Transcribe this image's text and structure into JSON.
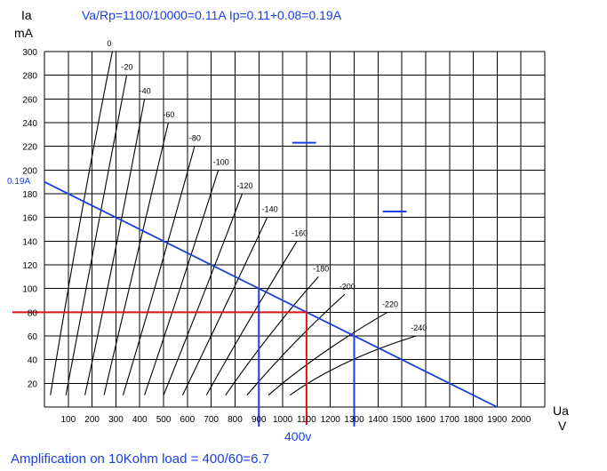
{
  "chart_data": {
    "type": "line",
    "title": "Va/Rp=1100/10000=0.11A  Ip=0.11+0.08=0.19A",
    "ylabel_line1": "Ia",
    "ylabel_line2": "mA",
    "xlabel_line1": "Ua",
    "xlabel_line2": "V",
    "caption": "Amplification on 10Kohm load = 400/60=6.7",
    "annotation_400v": "400v",
    "annotation_019A": "0.19A",
    "xlim": [
      0,
      2100
    ],
    "ylim": [
      0,
      300
    ],
    "x_ticks": [
      "100",
      "200",
      "300",
      "400",
      "500",
      "600",
      "700",
      "800",
      "900",
      "1000",
      "1100",
      "1200",
      "1300",
      "1400",
      "1500",
      "1600",
      "1700",
      "1800",
      "1900",
      "2000"
    ],
    "y_ticks": [
      "20",
      "40",
      "60",
      "80",
      "100",
      "120",
      "140",
      "160",
      "180",
      "200",
      "220",
      "240",
      "260",
      "280",
      "300"
    ],
    "grid": true,
    "grid_color": "#000000",
    "curve_color": "#000000",
    "load_line_color": "#1a3fe0",
    "marker_red_color": "#e0101a",
    "series": [
      {
        "name": "0",
        "points": [
          [
            25,
            10
          ],
          [
            155,
            170
          ],
          [
            285,
            300
          ]
        ]
      },
      {
        "name": "-20",
        "points": [
          [
            90,
            10
          ],
          [
            215,
            140
          ],
          [
            345,
            280
          ]
        ]
      },
      {
        "name": "-40",
        "points": [
          [
            170,
            10
          ],
          [
            300,
            130
          ],
          [
            420,
            260
          ]
        ]
      },
      {
        "name": "-60",
        "points": [
          [
            250,
            10
          ],
          [
            380,
            120
          ],
          [
            520,
            240
          ]
        ]
      },
      {
        "name": "-80",
        "points": [
          [
            330,
            10
          ],
          [
            480,
            110
          ],
          [
            630,
            220
          ]
        ]
      },
      {
        "name": "-100",
        "points": [
          [
            420,
            10
          ],
          [
            580,
            105
          ],
          [
            730,
            200
          ]
        ]
      },
      {
        "name": "-120",
        "points": [
          [
            500,
            10
          ],
          [
            670,
            95
          ],
          [
            830,
            180
          ]
        ]
      },
      {
        "name": "-140",
        "points": [
          [
            580,
            10
          ],
          [
            760,
            85
          ],
          [
            935,
            160
          ]
        ]
      },
      {
        "name": "-160",
        "points": [
          [
            680,
            10
          ],
          [
            860,
            75
          ],
          [
            1060,
            140
          ]
        ]
      },
      {
        "name": "-180",
        "points": [
          [
            760,
            10
          ],
          [
            950,
            65
          ],
          [
            1150,
            110
          ]
        ]
      },
      {
        "name": "-200",
        "points": [
          [
            850,
            10
          ],
          [
            1040,
            55
          ],
          [
            1260,
            95
          ]
        ]
      },
      {
        "name": "-220",
        "points": [
          [
            940,
            10
          ],
          [
            1140,
            45
          ],
          [
            1440,
            80
          ]
        ]
      },
      {
        "name": "-240",
        "points": [
          [
            1030,
            10
          ],
          [
            1240,
            40
          ],
          [
            1560,
            60
          ]
        ]
      }
    ],
    "load_line": {
      "x": [
        0,
        1900
      ],
      "y": [
        190,
        0
      ]
    },
    "blue_markers": [
      {
        "x": 900,
        "y_top": 100
      },
      {
        "x": 1300,
        "y_top": 60
      },
      {
        "segment_x": [
          1040,
          1140
        ],
        "y": 223
      },
      {
        "segment_x": [
          1420,
          1520
        ],
        "y": 165
      }
    ],
    "red_markers": {
      "h_y": 80,
      "h_x": [
        -60,
        1100
      ],
      "v_x": 1100
    }
  }
}
